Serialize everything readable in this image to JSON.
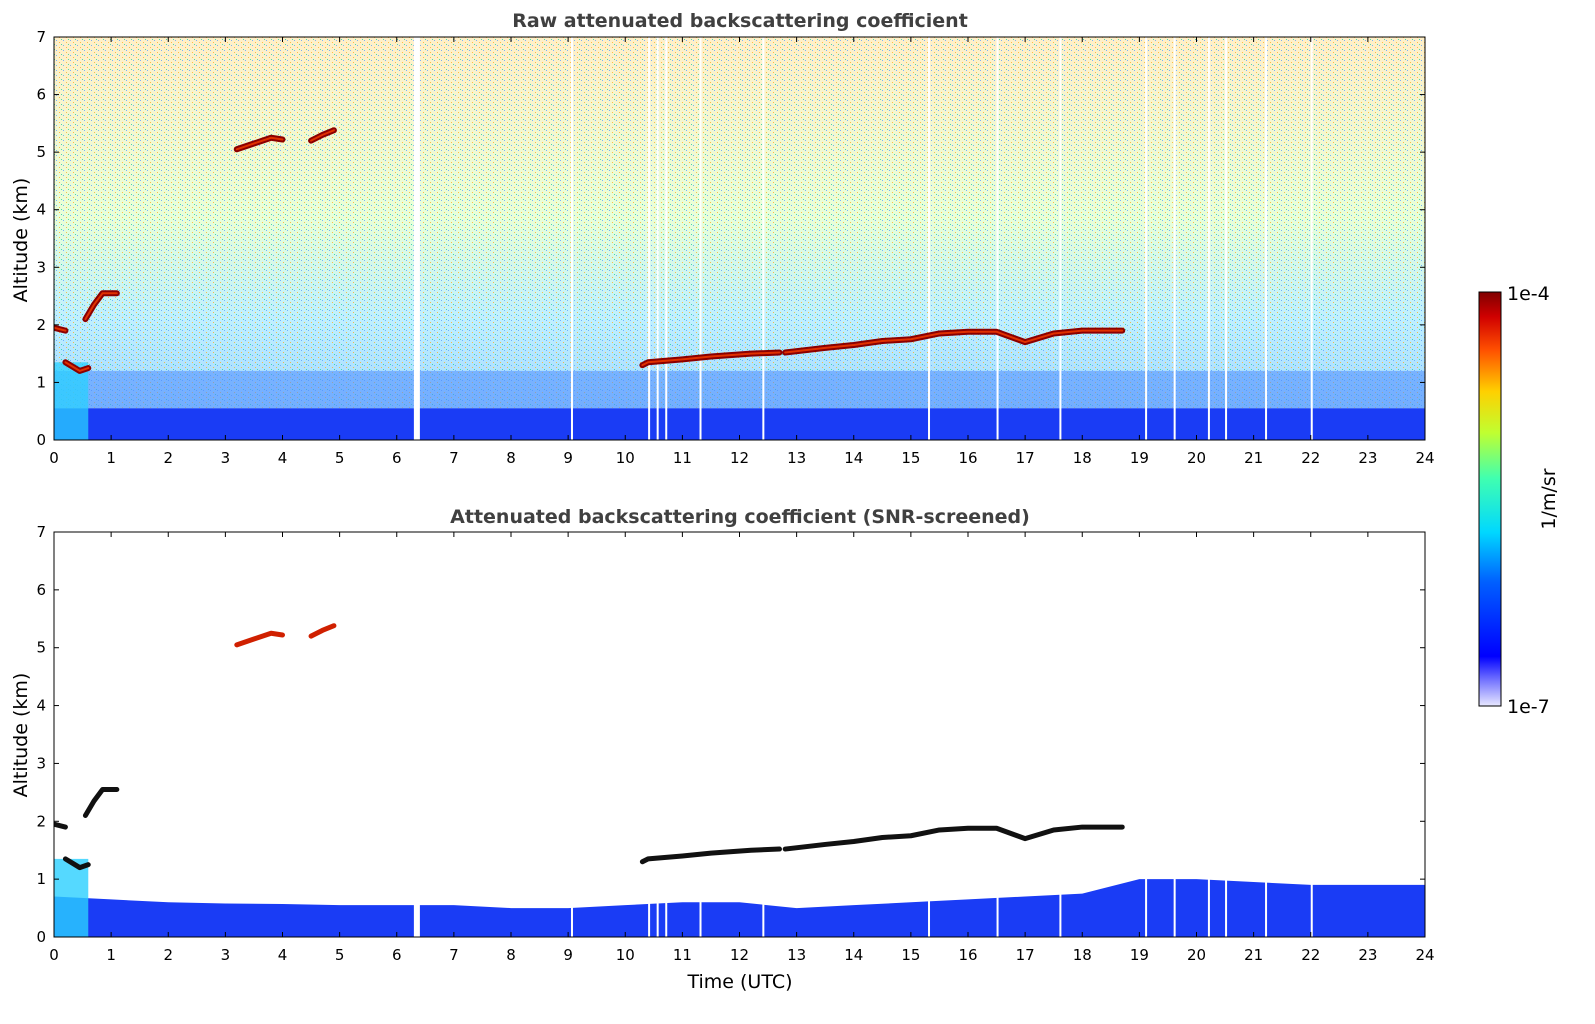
{
  "chart_data": [
    {
      "type": "heatmap",
      "title": "Raw attenuated backscattering coefficient",
      "xlabel": "",
      "ylabel": "Altitude (km)",
      "x_ticks": [
        "0",
        "1",
        "2",
        "3",
        "4",
        "5",
        "6",
        "7",
        "8",
        "9",
        "10",
        "11",
        "12",
        "13",
        "14",
        "15",
        "16",
        "17",
        "18",
        "19",
        "20",
        "21",
        "22",
        "23",
        "24"
      ],
      "y_ticks": [
        "0",
        "1",
        "2",
        "3",
        "4",
        "5",
        "6",
        "7"
      ],
      "xlim": [
        0,
        24
      ],
      "ylim": [
        0,
        7
      ],
      "features": {
        "boundary_layer_top_km": 0.55,
        "data_gaps_hours": [
          6.3,
          6.32,
          9.05,
          10.4,
          10.55,
          10.7,
          11.3,
          12.4,
          15.3,
          16.5,
          17.6,
          19.1,
          19.6,
          20.2,
          20.5,
          21.2,
          22.0
        ],
        "cloud_layers": [
          {
            "x": [
              3.2,
              3.5,
              3.8,
              4.0
            ],
            "y": [
              5.05,
              5.15,
              5.25,
              5.22
            ]
          },
          {
            "x": [
              4.5,
              4.7,
              4.9
            ],
            "y": [
              5.2,
              5.3,
              5.38
            ]
          },
          {
            "x": [
              0.0,
              0.2
            ],
            "y": [
              1.95,
              1.9
            ]
          },
          {
            "x": [
              0.55,
              0.7,
              0.85,
              1.1
            ],
            "y": [
              2.1,
              2.35,
              2.55,
              2.55
            ]
          },
          {
            "x": [
              0.2,
              0.45,
              0.6
            ],
            "y": [
              1.35,
              1.2,
              1.25
            ]
          },
          {
            "x": [
              10.3,
              10.4,
              11.0,
              11.5,
              12.2,
              12.7
            ],
            "y": [
              1.3,
              1.35,
              1.4,
              1.45,
              1.5,
              1.52
            ]
          },
          {
            "x": [
              12.8,
              13.5,
              14.0,
              14.5,
              15.0,
              15.5,
              16.0,
              16.5,
              17.0,
              17.5,
              18.0,
              18.7
            ],
            "y": [
              1.52,
              1.6,
              1.65,
              1.72,
              1.75,
              1.85,
              1.88,
              1.88,
              1.7,
              1.85,
              1.9,
              1.9
            ]
          }
        ]
      }
    },
    {
      "type": "heatmap",
      "title": "Attenuated backscattering coefficient (SNR-screened)",
      "xlabel": "Time (UTC)",
      "ylabel": "Altitude (km)",
      "x_ticks": [
        "0",
        "1",
        "2",
        "3",
        "4",
        "5",
        "6",
        "7",
        "8",
        "9",
        "10",
        "11",
        "12",
        "13",
        "14",
        "15",
        "16",
        "17",
        "18",
        "19",
        "20",
        "21",
        "22",
        "23",
        "24"
      ],
      "y_ticks": [
        "0",
        "1",
        "2",
        "3",
        "4",
        "5",
        "6",
        "7"
      ],
      "xlim": [
        0,
        24
      ],
      "ylim": [
        0,
        7
      ],
      "features": {
        "boundary_layer_top_km": {
          "x": [
            0.0,
            1.0,
            2.0,
            3.0,
            4.0,
            5.0,
            6.0,
            7.0,
            8.0,
            9.0,
            10.0,
            11.0,
            12.0,
            13.0,
            14.0,
            15.0,
            16.0,
            17.0,
            18.0,
            19.0,
            20.0,
            21.0,
            22.0,
            23.0,
            24.0
          ],
          "y": [
            0.7,
            0.65,
            0.6,
            0.58,
            0.57,
            0.55,
            0.55,
            0.55,
            0.5,
            0.5,
            0.55,
            0.6,
            0.6,
            0.5,
            0.55,
            0.6,
            0.65,
            0.7,
            0.75,
            1.0,
            1.0,
            0.95,
            0.9,
            0.9,
            0.9
          ]
        }
      }
    }
  ],
  "colorbar": {
    "label": "1/m/sr",
    "max_label": "1e-4",
    "min_label": "1e-7",
    "colormap": "jet"
  }
}
